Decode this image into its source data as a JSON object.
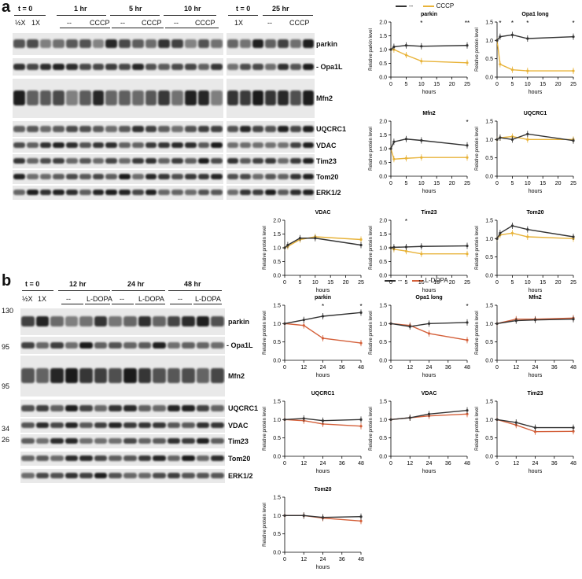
{
  "panel_a": {
    "letter": "a",
    "timepoints_left": [
      "t = 0",
      "1 hr",
      "5 hr",
      "10 hr"
    ],
    "timepoints_right": [
      "t = 0",
      "25 hr"
    ],
    "dose_labels": [
      "½X",
      "1X"
    ],
    "treatments_left": [
      "--",
      "CCCP",
      "--",
      "CCCP",
      "--",
      "CCCP"
    ],
    "treatments_right": [
      "1X",
      "--",
      "CCCP"
    ],
    "blot_labels": [
      "parkin",
      "Opa1L",
      "Mfn2",
      "UQCRC1",
      "VDAC",
      "Tim23",
      "Tom20",
      "ERK1/2"
    ],
    "legend": {
      "control": "--",
      "treated": "CCCP",
      "control_color": "#333333",
      "treated_color": "#e8b339"
    }
  },
  "panel_b": {
    "letter": "b",
    "timepoints": [
      "t = 0",
      "12 hr",
      "24 hr",
      "48 hr"
    ],
    "dose_labels": [
      "½X",
      "1X"
    ],
    "treatments": [
      "--",
      "L-DOPA",
      "--",
      "L-DOPA",
      "--",
      "L-DOPA"
    ],
    "blot_labels": [
      "parkin",
      "Opa1L",
      "Mfn2",
      "UQCRC1",
      "VDAC",
      "Tim23",
      "Tom20",
      "ERK1/2"
    ],
    "mw_markers": [
      "130",
      "95",
      "95",
      "34",
      "26"
    ],
    "legend": {
      "control": "--",
      "treated": "L-DOPA",
      "control_color": "#333333",
      "treated_color": "#d4603a"
    }
  },
  "chart_data": [
    {
      "group": "a",
      "type": "line",
      "title": "parkin",
      "xlabel": "hours",
      "ylabel": "Relative parkin level",
      "x": [
        0,
        1,
        5,
        10,
        25
      ],
      "xticks": [
        0,
        5,
        10,
        15,
        20,
        25
      ],
      "ylim": [
        0,
        2.0
      ],
      "yticks": [
        0,
        0.5,
        1.0,
        1.5,
        2.0
      ],
      "series": [
        {
          "name": "--",
          "values": [
            1.0,
            1.1,
            1.15,
            1.12,
            1.15
          ]
        },
        {
          "name": "CCCP",
          "values": [
            1.0,
            1.0,
            0.8,
            0.58,
            0.52
          ]
        }
      ],
      "annotations": [
        {
          "x": 10,
          "text": "*"
        },
        {
          "x": 25,
          "text": "**"
        }
      ]
    },
    {
      "group": "a",
      "type": "line",
      "title": "Opa1 long",
      "xlabel": "hours",
      "ylabel": "Relative protein level",
      "x": [
        0,
        1,
        5,
        10,
        25
      ],
      "xticks": [
        0,
        5,
        10,
        15,
        20,
        25
      ],
      "ylim": [
        0,
        1.5
      ],
      "yticks": [
        0,
        0.5,
        1.0,
        1.5
      ],
      "series": [
        {
          "name": "--",
          "values": [
            1.0,
            1.1,
            1.15,
            1.05,
            1.1
          ]
        },
        {
          "name": "CCCP",
          "values": [
            1.0,
            0.35,
            0.2,
            0.17,
            0.17
          ]
        }
      ],
      "annotations": [
        {
          "x": 1,
          "text": "*"
        },
        {
          "x": 5,
          "text": "*"
        },
        {
          "x": 10,
          "text": "*"
        },
        {
          "x": 25,
          "text": "*"
        }
      ]
    },
    {
      "group": "a",
      "type": "line",
      "title": "Mfn2",
      "xlabel": "hours",
      "ylabel": "Relative protein level",
      "x": [
        0,
        1,
        5,
        10,
        25
      ],
      "xticks": [
        0,
        5,
        10,
        15,
        20,
        25
      ],
      "ylim": [
        0,
        2.0
      ],
      "yticks": [
        0,
        0.5,
        1.0,
        1.5,
        2.0
      ],
      "series": [
        {
          "name": "--",
          "values": [
            1.0,
            1.25,
            1.35,
            1.3,
            1.12
          ]
        },
        {
          "name": "CCCP",
          "values": [
            1.0,
            0.62,
            0.65,
            0.68,
            0.68
          ]
        }
      ],
      "annotations": [
        {
          "x": 25,
          "text": "*"
        }
      ]
    },
    {
      "group": "a",
      "type": "line",
      "title": "UQCRC1",
      "xlabel": "hours",
      "ylabel": "Relative protein level",
      "x": [
        0,
        1,
        5,
        10,
        25
      ],
      "xticks": [
        0,
        5,
        10,
        15,
        20,
        25
      ],
      "ylim": [
        0,
        1.5
      ],
      "yticks": [
        0,
        0.5,
        1.0,
        1.5
      ],
      "series": [
        {
          "name": "--",
          "values": [
            1.0,
            1.05,
            1.0,
            1.15,
            0.97
          ]
        },
        {
          "name": "CCCP",
          "values": [
            1.0,
            1.05,
            1.08,
            1.0,
            1.0
          ]
        }
      ],
      "annotations": []
    },
    {
      "group": "a",
      "type": "line",
      "title": "VDAC",
      "xlabel": "hours",
      "ylabel": "Relative protein level",
      "x": [
        0,
        1,
        5,
        10,
        25
      ],
      "xticks": [
        0,
        5,
        10,
        15,
        20,
        25
      ],
      "ylim": [
        0,
        2.0
      ],
      "yticks": [
        0,
        0.5,
        1.0,
        1.5,
        2.0
      ],
      "series": [
        {
          "name": "--",
          "values": [
            1.0,
            1.1,
            1.35,
            1.35,
            1.1
          ]
        },
        {
          "name": "CCCP",
          "values": [
            1.0,
            1.05,
            1.3,
            1.4,
            1.3
          ]
        }
      ],
      "annotations": []
    },
    {
      "group": "a",
      "type": "line",
      "title": "Tim23",
      "xlabel": "hours",
      "ylabel": "Relative protein level",
      "x": [
        0,
        1,
        5,
        10,
        25
      ],
      "xticks": [
        0,
        5,
        10,
        15,
        20,
        25
      ],
      "ylim": [
        0,
        2.0
      ],
      "yticks": [
        0,
        0.5,
        1.0,
        1.5,
        2.0
      ],
      "series": [
        {
          "name": "--",
          "values": [
            1.0,
            1.02,
            1.03,
            1.05,
            1.07
          ]
        },
        {
          "name": "CCCP",
          "values": [
            1.0,
            0.95,
            0.88,
            0.78,
            0.78
          ]
        }
      ],
      "annotations": [
        {
          "x": 5,
          "text": "*"
        }
      ]
    },
    {
      "group": "a",
      "type": "line",
      "title": "Tom20",
      "xlabel": "hours",
      "ylabel": "Relative protein level",
      "x": [
        0,
        1,
        5,
        10,
        25
      ],
      "xticks": [
        0,
        5,
        10,
        15,
        20,
        25
      ],
      "ylim": [
        0,
        1.5
      ],
      "yticks": [
        0,
        0.5,
        1.0,
        1.5
      ],
      "series": [
        {
          "name": "--",
          "values": [
            1.0,
            1.15,
            1.35,
            1.25,
            1.05
          ]
        },
        {
          "name": "CCCP",
          "values": [
            1.0,
            1.1,
            1.15,
            1.05,
            1.0
          ]
        }
      ],
      "annotations": []
    },
    {
      "group": "b",
      "type": "line",
      "title": "parkin",
      "xlabel": "hours",
      "ylabel": "Relative protein level",
      "x": [
        0,
        12,
        24,
        48
      ],
      "xticks": [
        0,
        12,
        24,
        36,
        48
      ],
      "ylim": [
        0,
        1.5
      ],
      "yticks": [
        0,
        0.5,
        1.0,
        1.5
      ],
      "series": [
        {
          "name": "--",
          "values": [
            1.0,
            1.1,
            1.2,
            1.3
          ]
        },
        {
          "name": "L-DOPA",
          "values": [
            1.0,
            0.95,
            0.6,
            0.47
          ]
        }
      ],
      "annotations": [
        {
          "x": 24,
          "text": "*"
        },
        {
          "x": 48,
          "text": "*"
        }
      ]
    },
    {
      "group": "b",
      "type": "line",
      "title": "Opa1 long",
      "xlabel": "hours",
      "ylabel": "Relative protein level",
      "x": [
        0,
        12,
        24,
        48
      ],
      "xticks": [
        0,
        12,
        24,
        36,
        48
      ],
      "ylim": [
        0,
        1.5
      ],
      "yticks": [
        0,
        0.5,
        1.0,
        1.5
      ],
      "series": [
        {
          "name": "--",
          "values": [
            1.0,
            0.92,
            1.0,
            1.03
          ]
        },
        {
          "name": "L-DOPA",
          "values": [
            1.0,
            0.95,
            0.73,
            0.55
          ]
        }
      ],
      "annotations": [
        {
          "x": 48,
          "text": "*"
        }
      ]
    },
    {
      "group": "b",
      "type": "line",
      "title": "Mfn2",
      "xlabel": "hours",
      "ylabel": "Relative protein level",
      "x": [
        0,
        12,
        24,
        48
      ],
      "xticks": [
        0,
        12,
        24,
        36,
        48
      ],
      "ylim": [
        0,
        1.5
      ],
      "yticks": [
        0,
        0.5,
        1.0,
        1.5
      ],
      "series": [
        {
          "name": "--",
          "values": [
            1.0,
            1.08,
            1.1,
            1.12
          ]
        },
        {
          "name": "L-DOPA",
          "values": [
            1.0,
            1.12,
            1.12,
            1.15
          ]
        }
      ],
      "annotations": []
    },
    {
      "group": "b",
      "type": "line",
      "title": "UQCRC1",
      "xlabel": "hours",
      "ylabel": "Relative protein level",
      "x": [
        0,
        12,
        24,
        48
      ],
      "xticks": [
        0,
        12,
        24,
        36,
        48
      ],
      "ylim": [
        0,
        1.5
      ],
      "yticks": [
        0,
        0.5,
        1.0,
        1.5
      ],
      "series": [
        {
          "name": "--",
          "values": [
            1.0,
            1.03,
            0.97,
            1.0
          ]
        },
        {
          "name": "L-DOPA",
          "values": [
            1.0,
            0.97,
            0.88,
            0.82
          ]
        }
      ],
      "annotations": []
    },
    {
      "group": "b",
      "type": "line",
      "title": "VDAC",
      "xlabel": "hours",
      "ylabel": "Relative protein level",
      "x": [
        0,
        12,
        24,
        48
      ],
      "xticks": [
        0,
        12,
        24,
        36,
        48
      ],
      "ylim": [
        0,
        1.5
      ],
      "yticks": [
        0,
        0.5,
        1.0,
        1.5
      ],
      "series": [
        {
          "name": "--",
          "values": [
            1.0,
            1.05,
            1.15,
            1.25
          ]
        },
        {
          "name": "L-DOPA",
          "values": [
            1.0,
            1.05,
            1.1,
            1.15
          ]
        }
      ],
      "annotations": []
    },
    {
      "group": "b",
      "type": "line",
      "title": "Tim23",
      "xlabel": "hours",
      "ylabel": "Relative protein level",
      "x": [
        0,
        12,
        24,
        48
      ],
      "xticks": [
        0,
        12,
        24,
        36,
        48
      ],
      "ylim": [
        0,
        1.5
      ],
      "yticks": [
        0,
        0.5,
        1.0,
        1.5
      ],
      "series": [
        {
          "name": "--",
          "values": [
            1.0,
            0.92,
            0.78,
            0.78
          ]
        },
        {
          "name": "L-DOPA",
          "values": [
            1.0,
            0.85,
            0.67,
            0.68
          ]
        }
      ],
      "annotations": []
    },
    {
      "group": "b",
      "type": "line",
      "title": "Tom20",
      "xlabel": "hours",
      "ylabel": "Relative protein level",
      "x": [
        0,
        12,
        24,
        48
      ],
      "xticks": [
        0,
        12,
        24,
        36,
        48
      ],
      "ylim": [
        0,
        1.5
      ],
      "yticks": [
        0,
        0.5,
        1.0,
        1.5
      ],
      "series": [
        {
          "name": "--",
          "values": [
            1.0,
            1.0,
            0.95,
            0.97
          ]
        },
        {
          "name": "L-DOPA",
          "values": [
            1.0,
            1.0,
            0.93,
            0.85
          ]
        }
      ],
      "annotations": []
    }
  ]
}
